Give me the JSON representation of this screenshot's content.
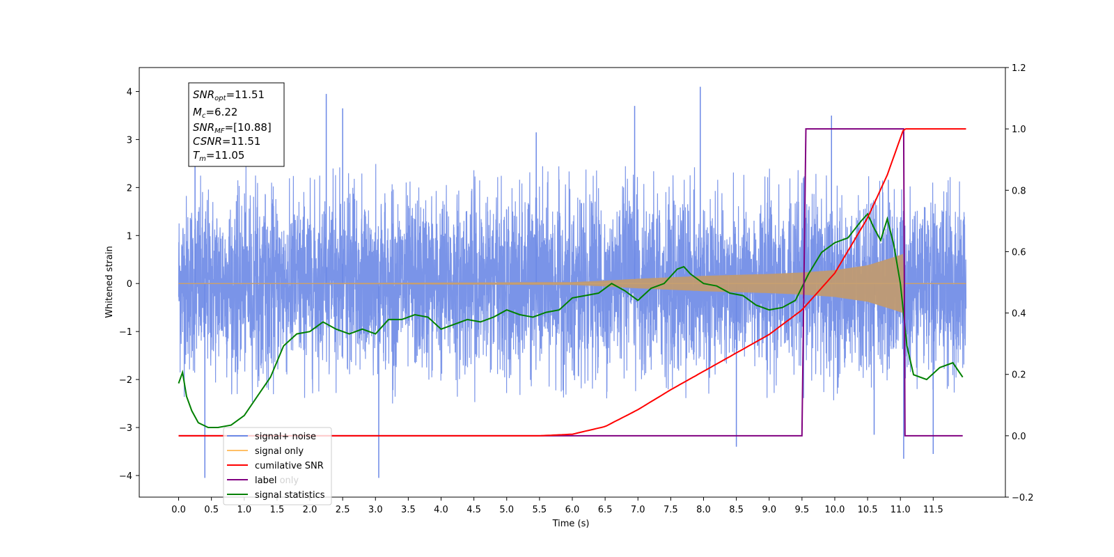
{
  "chart_data": {
    "type": "line",
    "title": "",
    "xlabel": "Time (s)",
    "ylabel": "Whitened strain",
    "xlim": [
      -0.6,
      12.6
    ],
    "ylim": [
      -4.45,
      4.5
    ],
    "y2lim": [
      -0.2,
      1.2
    ],
    "grid": false,
    "legend_position": "lower-left",
    "x_ticks": [
      "0.0",
      "0.5",
      "1.0",
      "1.5",
      "2.0",
      "2.5",
      "3.0",
      "3.5",
      "4.0",
      "4.5",
      "5.0",
      "5.5",
      "6.0",
      "6.5",
      "7.0",
      "7.5",
      "8.0",
      "8.5",
      "9.0",
      "9.5",
      "10.0",
      "10.5",
      "11.0",
      "11.5"
    ],
    "y_ticks": [
      "4",
      "3",
      "2",
      "1",
      "0",
      "−1",
      "−2",
      "−3",
      "−4"
    ],
    "y2_ticks": [
      "1.2",
      "1.0",
      "0.8",
      "0.6",
      "0.4",
      "0.2",
      "0.0",
      "−0.2"
    ],
    "info_box": {
      "snr_opt": {
        "sym": "SNR",
        "sub": "opt",
        "value": "=11.51"
      },
      "mc": {
        "sym": "M",
        "sub": "c",
        "value": "=6.22"
      },
      "snr_mf": {
        "sym": "SNR",
        "sub": "MF",
        "value": "=[10.88]"
      },
      "csnr": {
        "sym": "CSNR",
        "value": "=11.51"
      },
      "tm": {
        "sym": "T",
        "sub": "m",
        "value": "=11.05"
      }
    },
    "legend": [
      {
        "label": "signal+ noise",
        "color": "#6b88e6"
      },
      {
        "label": "signal only",
        "color": "#ffbf66"
      },
      {
        "label": "cumilative SNR",
        "color": "#ff0000"
      },
      {
        "label": "label",
        "color": "#800080"
      },
      {
        "label": "signal statistics",
        "color": "#008000"
      }
    ],
    "hidden_legend_text": "label only",
    "series": [
      {
        "name": "signal+ noise",
        "axis": "left",
        "color": "#6b88e6",
        "description_values": {
          "x_start": 0.0,
          "x_end": 12.0,
          "typical_abs_max": 2.5,
          "min": -4.05,
          "max": 4.1
        },
        "spikes": [
          [
            0.25,
            2.6
          ],
          [
            0.4,
            -4.05
          ],
          [
            2.25,
            3.95
          ],
          [
            2.5,
            3.65
          ],
          [
            3.05,
            -4.05
          ],
          [
            5.45,
            3.15
          ],
          [
            6.95,
            3.7
          ],
          [
            7.95,
            4.1
          ],
          [
            8.5,
            -3.4
          ],
          [
            9.95,
            3.5
          ],
          [
            10.6,
            -3.15
          ],
          [
            11.05,
            -3.65
          ],
          [
            11.5,
            -3.55
          ]
        ]
      },
      {
        "name": "signal only",
        "axis": "left",
        "color": "#ffbf66",
        "envelope": [
          [
            0.0,
            0.0
          ],
          [
            6.0,
            0.03
          ],
          [
            6.5,
            0.06
          ],
          [
            7.0,
            0.1
          ],
          [
            7.5,
            0.13
          ],
          [
            8.0,
            0.16
          ],
          [
            8.5,
            0.18
          ],
          [
            9.0,
            0.2
          ],
          [
            9.5,
            0.23
          ],
          [
            10.0,
            0.28
          ],
          [
            10.5,
            0.38
          ],
          [
            10.9,
            0.55
          ],
          [
            11.05,
            0.62
          ],
          [
            11.06,
            0.0
          ],
          [
            12.0,
            0.0
          ]
        ]
      },
      {
        "name": "cumilative SNR",
        "axis": "right",
        "color": "#ff0000",
        "x": [
          0.0,
          5.0,
          5.5,
          6.0,
          6.5,
          7.0,
          7.5,
          8.0,
          8.5,
          9.0,
          9.5,
          10.0,
          10.5,
          10.8,
          11.0,
          11.05,
          12.0
        ],
        "y": [
          0.0,
          0.0,
          0.0,
          0.005,
          0.03,
          0.085,
          0.15,
          0.21,
          0.27,
          0.33,
          0.41,
          0.53,
          0.71,
          0.85,
          0.97,
          1.0,
          1.0
        ]
      },
      {
        "name": "label",
        "axis": "right",
        "color": "#800080",
        "x": [
          0.0,
          9.5,
          9.56,
          11.05,
          11.07,
          11.95
        ],
        "y": [
          0.0,
          0.0,
          1.0,
          1.0,
          0.0,
          0.0
        ]
      },
      {
        "name": "signal statistics",
        "axis": "left",
        "color": "#008000",
        "x": [
          0.0,
          0.06,
          0.12,
          0.2,
          0.3,
          0.45,
          0.6,
          0.8,
          1.0,
          1.2,
          1.4,
          1.6,
          1.8,
          2.0,
          2.2,
          2.4,
          2.6,
          2.8,
          3.0,
          3.2,
          3.4,
          3.6,
          3.8,
          4.0,
          4.2,
          4.4,
          4.6,
          4.8,
          5.0,
          5.2,
          5.4,
          5.6,
          5.8,
          6.0,
          6.2,
          6.4,
          6.6,
          6.8,
          7.0,
          7.2,
          7.4,
          7.6,
          7.7,
          7.8,
          8.0,
          8.2,
          8.4,
          8.6,
          8.8,
          9.0,
          9.2,
          9.4,
          9.6,
          9.8,
          10.0,
          10.2,
          10.4,
          10.5,
          10.6,
          10.7,
          10.8,
          10.9,
          11.0,
          11.1,
          11.2,
          11.4,
          11.6,
          11.8,
          11.95
        ],
        "y": [
          -2.08,
          -1.85,
          -2.35,
          -2.65,
          -2.9,
          -3.0,
          -3.0,
          -2.95,
          -2.75,
          -2.35,
          -1.95,
          -1.3,
          -1.05,
          -1.0,
          -0.8,
          -0.95,
          -1.05,
          -0.95,
          -1.05,
          -0.75,
          -0.75,
          -0.65,
          -0.7,
          -0.95,
          -0.85,
          -0.75,
          -0.8,
          -0.7,
          -0.55,
          -0.65,
          -0.7,
          -0.6,
          -0.55,
          -0.3,
          -0.25,
          -0.2,
          0.0,
          -0.15,
          -0.35,
          -0.1,
          0.0,
          0.3,
          0.35,
          0.2,
          0.0,
          -0.05,
          -0.2,
          -0.25,
          -0.45,
          -0.55,
          -0.5,
          -0.35,
          0.2,
          0.65,
          0.85,
          0.95,
          1.3,
          1.45,
          1.15,
          0.9,
          1.35,
          0.8,
          0.0,
          -1.3,
          -1.9,
          -2.0,
          -1.75,
          -1.65,
          -1.95
        ]
      }
    ]
  }
}
